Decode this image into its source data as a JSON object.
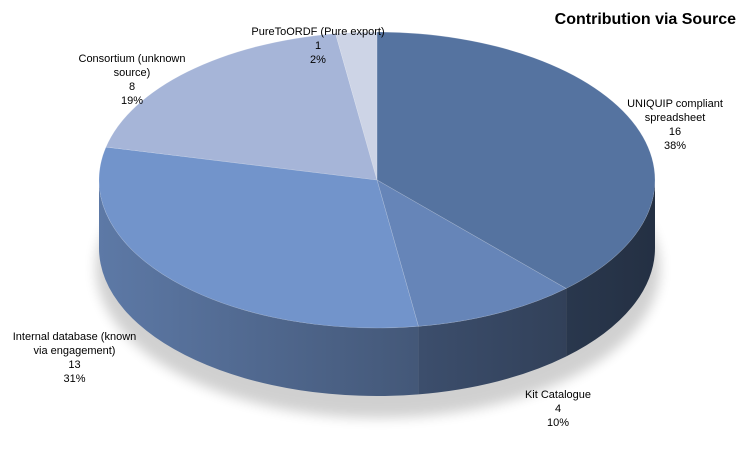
{
  "chart_data": {
    "type": "pie",
    "title": "Contribution via Source",
    "slices": [
      {
        "name": "UNIQUIP compliant spreadsheet",
        "value": 16,
        "percent": "38%",
        "color": "#5573a0"
      },
      {
        "name": "Kit Catalogue",
        "value": 4,
        "percent": "10%",
        "color": "#6685b8"
      },
      {
        "name": "Internal database (known via engagement)",
        "value": 13,
        "percent": "31%",
        "color": "#7294cb"
      },
      {
        "name": "Consortium (unknown source)",
        "value": 8,
        "percent": "19%",
        "color": "#a6b5d8"
      },
      {
        "name": "PureToORDF (Pure export)",
        "value": 1,
        "percent": "2%",
        "color": "#cdd4e6"
      }
    ]
  },
  "labels": [
    {
      "line1": "UNIQUIP compliant",
      "line2": "spreadsheet"
    },
    {
      "line1": "Kit Catalogue",
      "line2": ""
    },
    {
      "line1": "Internal database (known",
      "line2": "via engagement)"
    },
    {
      "line1": "Consortium (unknown",
      "line2": "source)"
    },
    {
      "line1": "PureToORDF (Pure export)",
      "line2": ""
    }
  ]
}
